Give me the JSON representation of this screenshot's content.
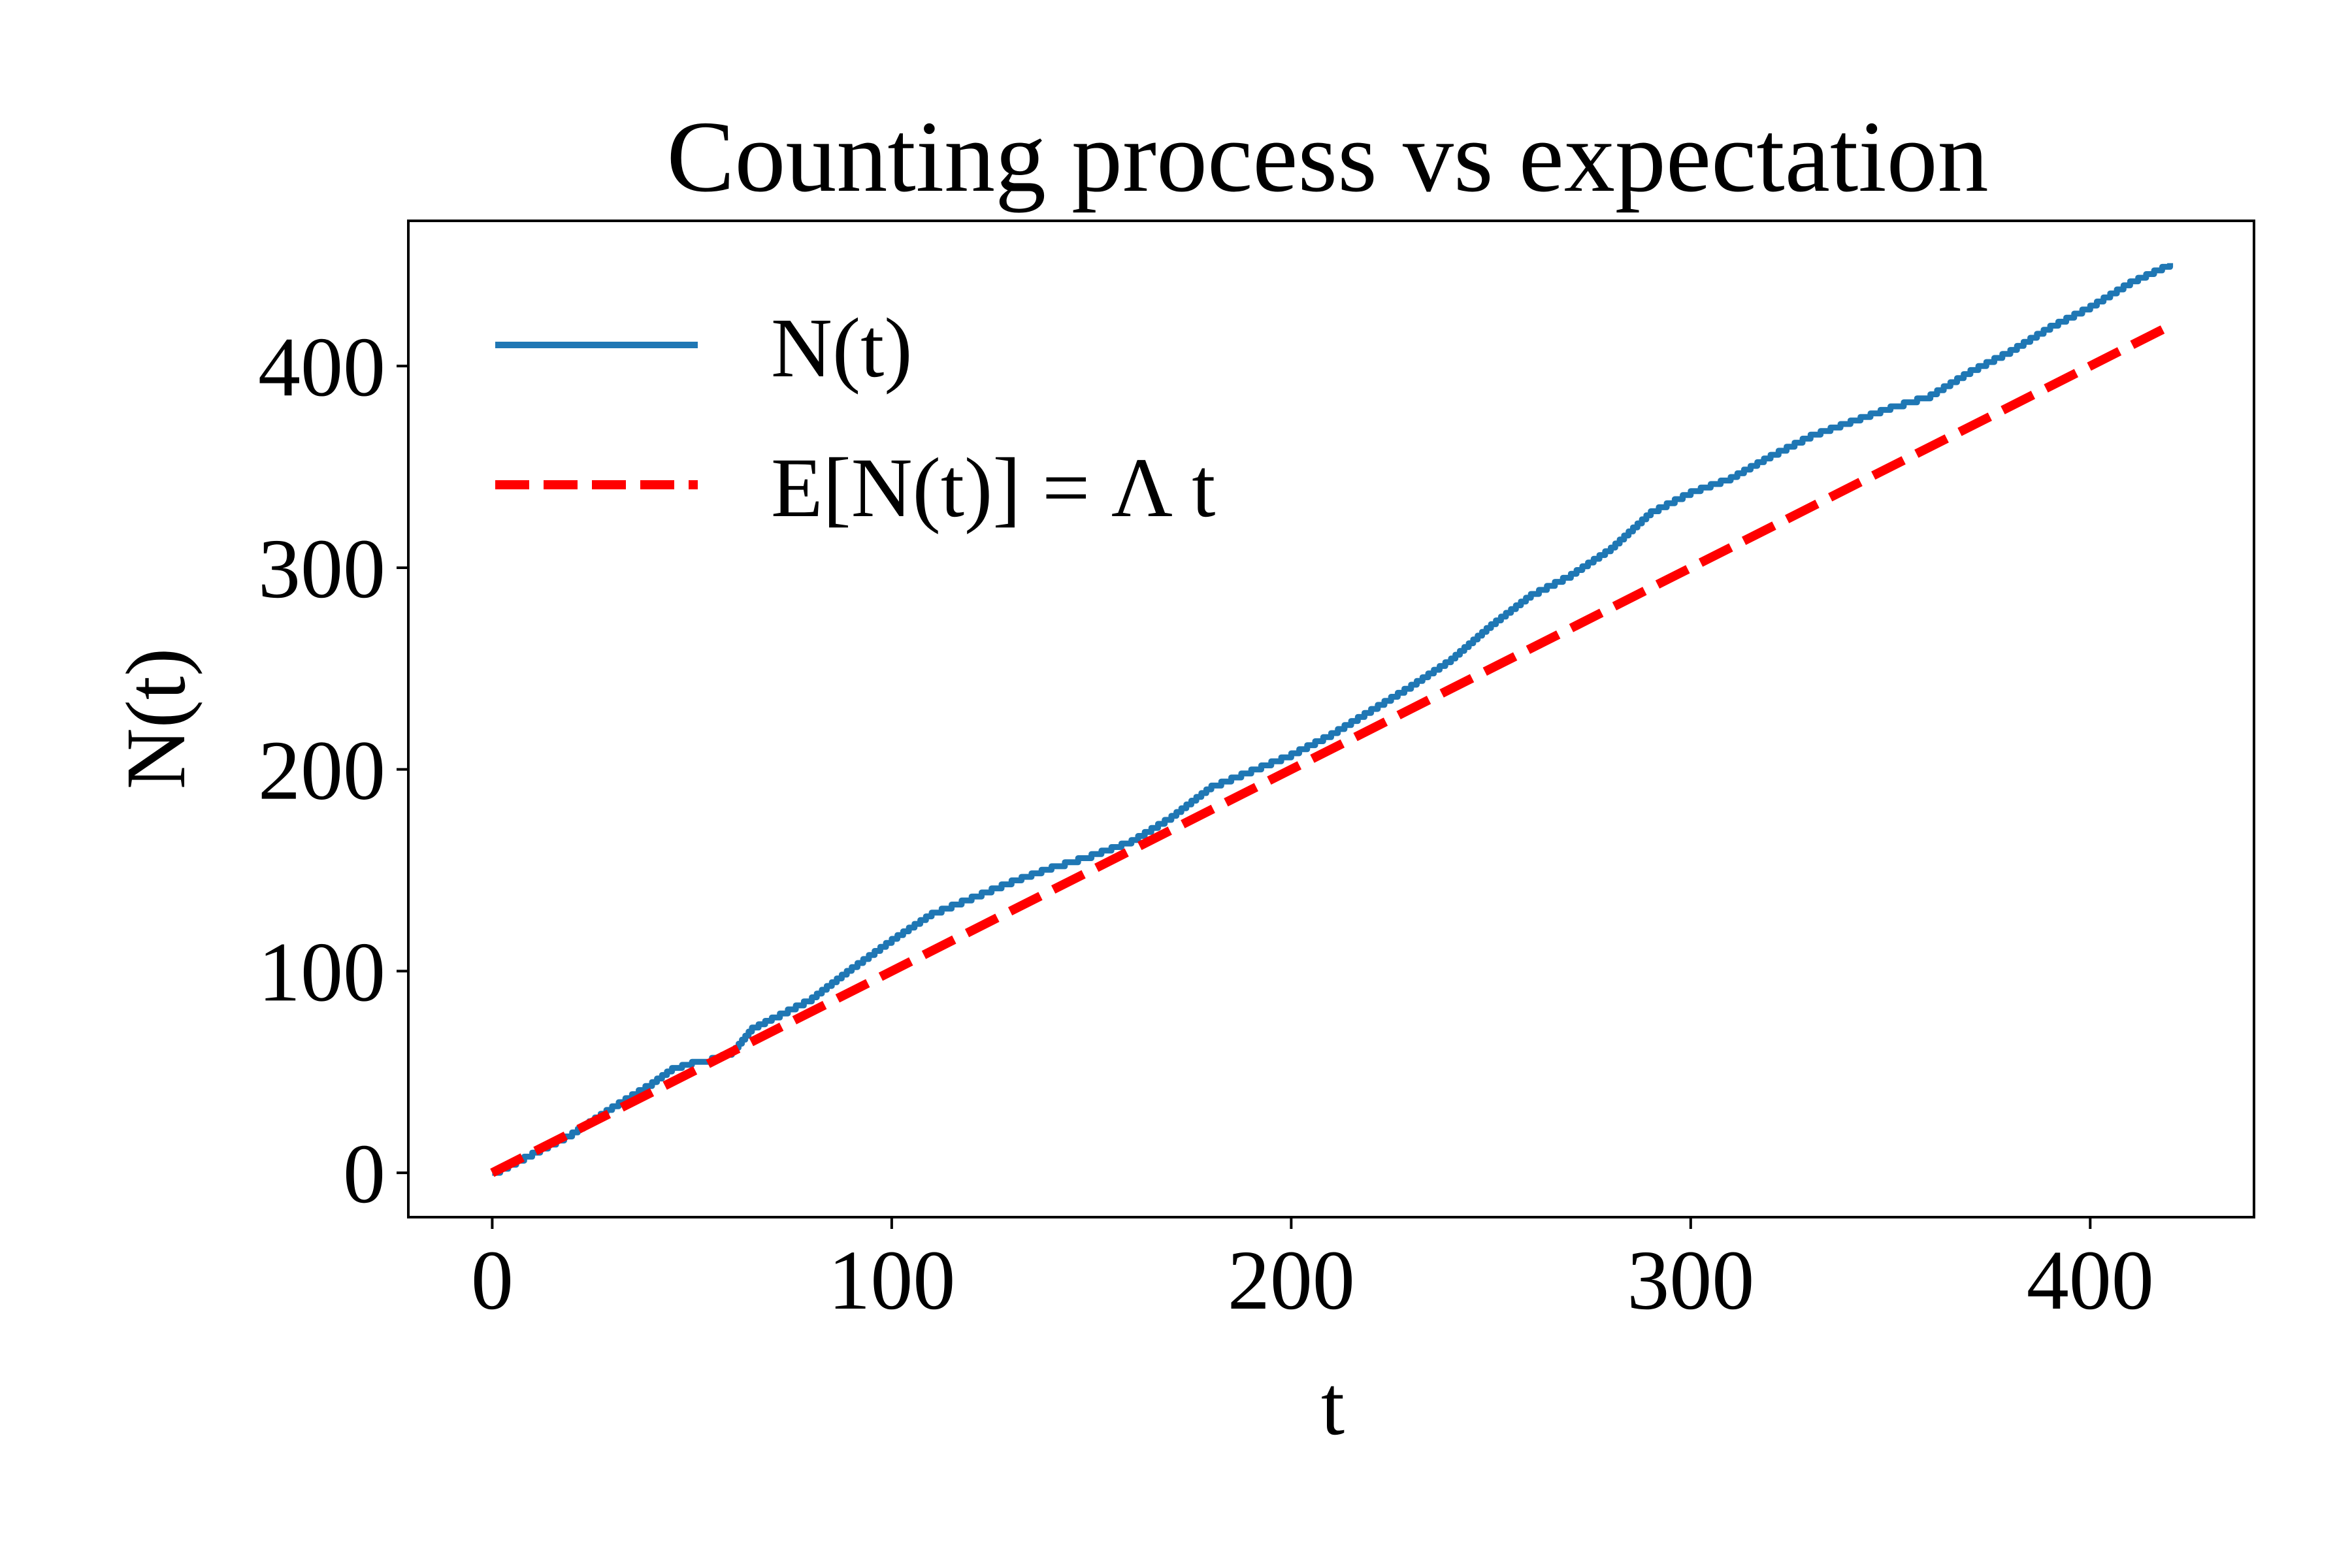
{
  "chart_data": {
    "type": "line",
    "title": "Counting process vs expectation",
    "xlabel": "t",
    "ylabel": "N(t)",
    "xlim": [
      -21,
      441
    ],
    "ylim": [
      -22,
      472
    ],
    "xticks": [
      0,
      100,
      200,
      300,
      400
    ],
    "yticks": [
      0,
      100,
      200,
      300,
      400
    ],
    "grid": false,
    "legend_position": "upper-left",
    "series": [
      {
        "name": "N(t)",
        "style": "solid",
        "color": "#1f77b4",
        "x": [
          0,
          10,
          20,
          30,
          40,
          45,
          50,
          55,
          60,
          65,
          70,
          80,
          90,
          100,
          110,
          120,
          130,
          140,
          150,
          160,
          170,
          180,
          190,
          200,
          210,
          220,
          230,
          240,
          250,
          260,
          270,
          280,
          290,
          300,
          310,
          320,
          330,
          340,
          350,
          360,
          370,
          380,
          390,
          400,
          410,
          420
        ],
        "y": [
          0,
          10,
          20,
          33,
          45,
          52,
          55,
          57,
          60,
          72,
          77,
          87,
          102,
          116,
          129,
          137,
          145,
          152,
          158,
          165,
          177,
          192,
          200,
          208,
          218,
          230,
          242,
          255,
          272,
          287,
          297,
          310,
          328,
          338,
          345,
          356,
          366,
          373,
          380,
          386,
          398,
          408,
          420,
          430,
          442,
          451
        ]
      },
      {
        "name": "E[N(t)] = Λ t",
        "style": "dashed",
        "color": "#ff0000",
        "x": [
          0,
          420
        ],
        "y": [
          0,
          420
        ]
      }
    ]
  }
}
